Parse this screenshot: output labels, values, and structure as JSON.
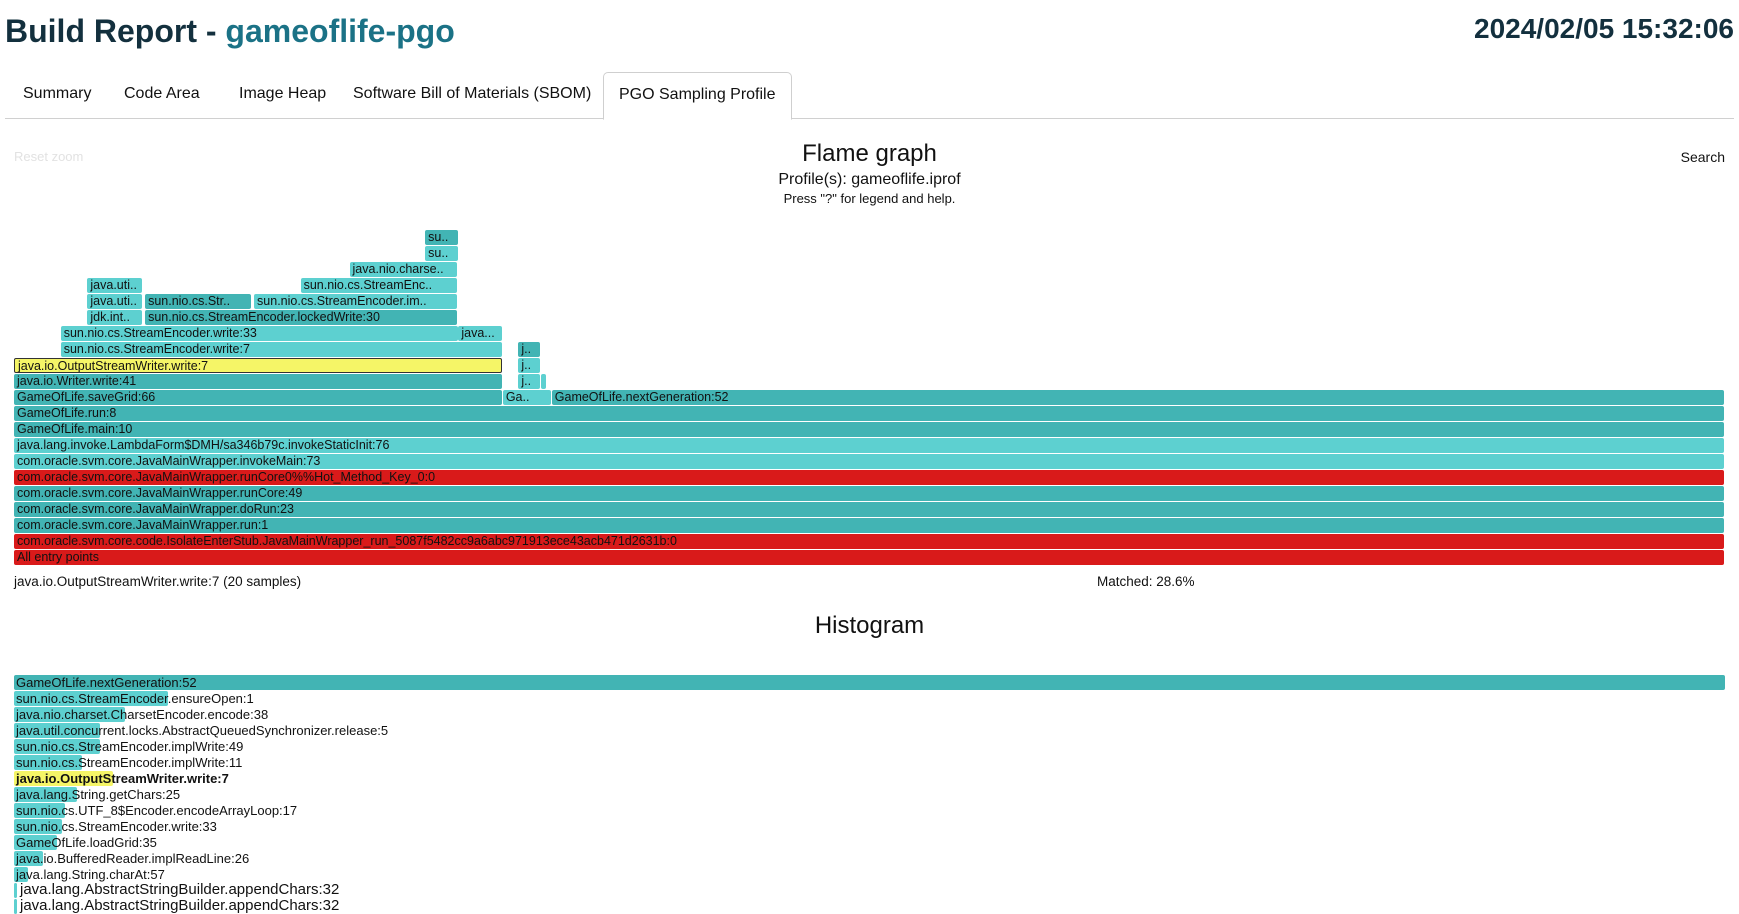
{
  "header": {
    "title_prefix": "Build Report - ",
    "app_name": "gameoflife-pgo",
    "datetime": "2024/02/05 15:32:06"
  },
  "tabs": [
    {
      "label": "Summary",
      "active": false
    },
    {
      "label": "Code Area",
      "active": false
    },
    {
      "label": "Image Heap",
      "active": false
    },
    {
      "label": "Software Bill of Materials (SBOM)",
      "active": false
    },
    {
      "label": "PGO Sampling Profile",
      "active": true
    }
  ],
  "flamegraph": {
    "reset_zoom": "Reset zoom",
    "search": "Search",
    "title": "Flame graph",
    "profiles": "Profile(s): gameoflife.iprof",
    "help": "Press \"?\" for legend and help.",
    "details": "java.io.OutputStreamWriter.write:7 (20 samples)",
    "matched": "Matched: 28.6%"
  },
  "histogram": {
    "title": "Histogram"
  },
  "colors": {
    "teal": "#5dd0d0",
    "teal_dark": "#42b4b4",
    "red": "#d91a1a",
    "highlight": "#f5f567",
    "title_dark": "#13303e",
    "title_accent": "#1b7286"
  },
  "chart_data": [
    {
      "type": "flamegraph",
      "title": "Flame graph",
      "frames": [
        {
          "label": "All entry points",
          "depth": 0,
          "start": 0.0,
          "width": 1.0,
          "color": "red"
        },
        {
          "label": "com.oracle.svm.core.code.IsolateEnterStub.JavaMainWrapper_run_5087f5482cc9a6abc971913ece43acb471d2631b:0",
          "depth": 1,
          "start": 0.0,
          "width": 1.0,
          "color": "red"
        },
        {
          "label": "com.oracle.svm.core.JavaMainWrapper.run:1",
          "depth": 2,
          "start": 0.0,
          "width": 1.0,
          "color": "dark"
        },
        {
          "label": "com.oracle.svm.core.JavaMainWrapper.doRun:23",
          "depth": 3,
          "start": 0.0,
          "width": 1.0,
          "color": "dark"
        },
        {
          "label": "com.oracle.svm.core.JavaMainWrapper.runCore:49",
          "depth": 4,
          "start": 0.0,
          "width": 1.0,
          "color": "dark"
        },
        {
          "label": "com.oracle.svm.core.JavaMainWrapper.runCore0%%Hot_Method_Key_0:0",
          "depth": 5,
          "start": 0.0,
          "width": 1.0,
          "color": "red"
        },
        {
          "label": "com.oracle.svm.core.JavaMainWrapper.invokeMain:73",
          "depth": 6,
          "start": 0.0,
          "width": 1.0,
          "color": "teal"
        },
        {
          "label": "java.lang.invoke.LambdaForm$DMH/sa346b79c.invokeStaticInit:76",
          "depth": 7,
          "start": 0.0,
          "width": 1.0,
          "color": "teal"
        },
        {
          "label": "GameOfLife.main:10",
          "depth": 8,
          "start": 0.0,
          "width": 1.0,
          "color": "dark"
        },
        {
          "label": "GameOfLife.run:8",
          "depth": 9,
          "start": 0.0,
          "width": 1.0,
          "color": "dark"
        },
        {
          "label": "GameOfLife.saveGrid:66",
          "depth": 10,
          "start": 0.0,
          "width": 0.2857,
          "color": "dark"
        },
        {
          "label": "Ga..",
          "depth": 10,
          "start": 0.2857,
          "width": 0.0286,
          "color": "teal"
        },
        {
          "label": "GameOfLife.nextGeneration:52",
          "depth": 10,
          "start": 0.3143,
          "width": 0.6857,
          "color": "dark"
        },
        {
          "label": "java.io.Writer.write:41",
          "depth": 11,
          "start": 0.0,
          "width": 0.2857,
          "color": "dark"
        },
        {
          "label": "j..",
          "depth": 11,
          "start": 0.2948,
          "width": 0.013,
          "color": "teal"
        },
        {
          "label": "",
          "depth": 11,
          "start": 0.3078,
          "width": 0.004,
          "color": "teal"
        },
        {
          "label": "java.io.OutputStreamWriter.write:7",
          "depth": 12,
          "start": 0.0,
          "width": 0.2857,
          "color": "highlight"
        },
        {
          "label": "j..",
          "depth": 12,
          "start": 0.2948,
          "width": 0.013,
          "color": "teal"
        },
        {
          "label": "sun.nio.cs.StreamEncoder.write:7",
          "depth": 13,
          "start": 0.0273,
          "width": 0.2584,
          "color": "teal"
        },
        {
          "label": "j..",
          "depth": 13,
          "start": 0.2948,
          "width": 0.013,
          "color": "dark"
        },
        {
          "label": "sun.nio.cs.StreamEncoder.write:33",
          "depth": 14,
          "start": 0.0273,
          "width": 0.2325,
          "color": "teal"
        },
        {
          "label": "java...",
          "depth": 14,
          "start": 0.2597,
          "width": 0.026,
          "color": "teal"
        },
        {
          "label": "jdk.int..",
          "depth": 15,
          "start": 0.0429,
          "width": 0.0325,
          "color": "teal"
        },
        {
          "label": "sun.nio.cs.StreamEncoder.lockedWrite:30",
          "depth": 15,
          "start": 0.0766,
          "width": 0.1831,
          "color": "dark"
        },
        {
          "label": "java.uti..",
          "depth": 16,
          "start": 0.0429,
          "width": 0.0325,
          "color": "teal"
        },
        {
          "label": "sun.nio.cs.Str..",
          "depth": 16,
          "start": 0.0766,
          "width": 0.0623,
          "color": "dark"
        },
        {
          "label": "sun.nio.cs.StreamEncoder.im..",
          "depth": 16,
          "start": 0.1403,
          "width": 0.1194,
          "color": "teal"
        },
        {
          "label": "java.uti..",
          "depth": 17,
          "start": 0.0429,
          "width": 0.0325,
          "color": "teal"
        },
        {
          "label": "sun.nio.cs.StreamEnc..",
          "depth": 17,
          "start": 0.1675,
          "width": 0.0922,
          "color": "teal"
        },
        {
          "label": "java.nio.charse..",
          "depth": 18,
          "start": 0.1961,
          "width": 0.0636,
          "color": "teal"
        },
        {
          "label": "su..",
          "depth": 19,
          "start": 0.2403,
          "width": 0.0195,
          "color": "teal"
        },
        {
          "label": "su..",
          "depth": 20,
          "start": 0.2403,
          "width": 0.0195,
          "color": "dark"
        }
      ]
    },
    {
      "type": "bar",
      "title": "Histogram",
      "categories": [
        "GameOfLife.nextGeneration:52",
        "sun.nio.cs.StreamEncoder.ensureOpen:1",
        "java.nio.charset.CharsetEncoder.encode:38",
        "java.util.concurrent.locks.AbstractQueuedSynchronizer.release:5",
        "sun.nio.cs.StreamEncoder.implWrite:49",
        "sun.nio.cs.StreamEncoder.implWrite:11",
        "java.io.OutputStreamWriter.write:7",
        "java.lang.String.getChars:25",
        "sun.nio.cs.UTF_8$Encoder.encodeArrayLoop:17",
        "sun.nio.cs.StreamEncoder.write:33",
        "GameOfLife.loadGrid:35",
        "java.io.BufferedReader.implReadLine:26",
        "java.lang.String.charAt:57",
        "java.lang.AbstractStringBuilder.appendChars:32",
        "java.lang.AbstractStringBuilder.appendChars:32"
      ],
      "values": [
        1.0,
        0.09,
        0.065,
        0.05,
        0.05,
        0.04,
        0.058,
        0.037,
        0.03,
        0.028,
        0.025,
        0.017,
        0.008,
        0.002,
        0.002
      ],
      "highlighted": "java.io.OutputStreamWriter.write:7"
    }
  ]
}
